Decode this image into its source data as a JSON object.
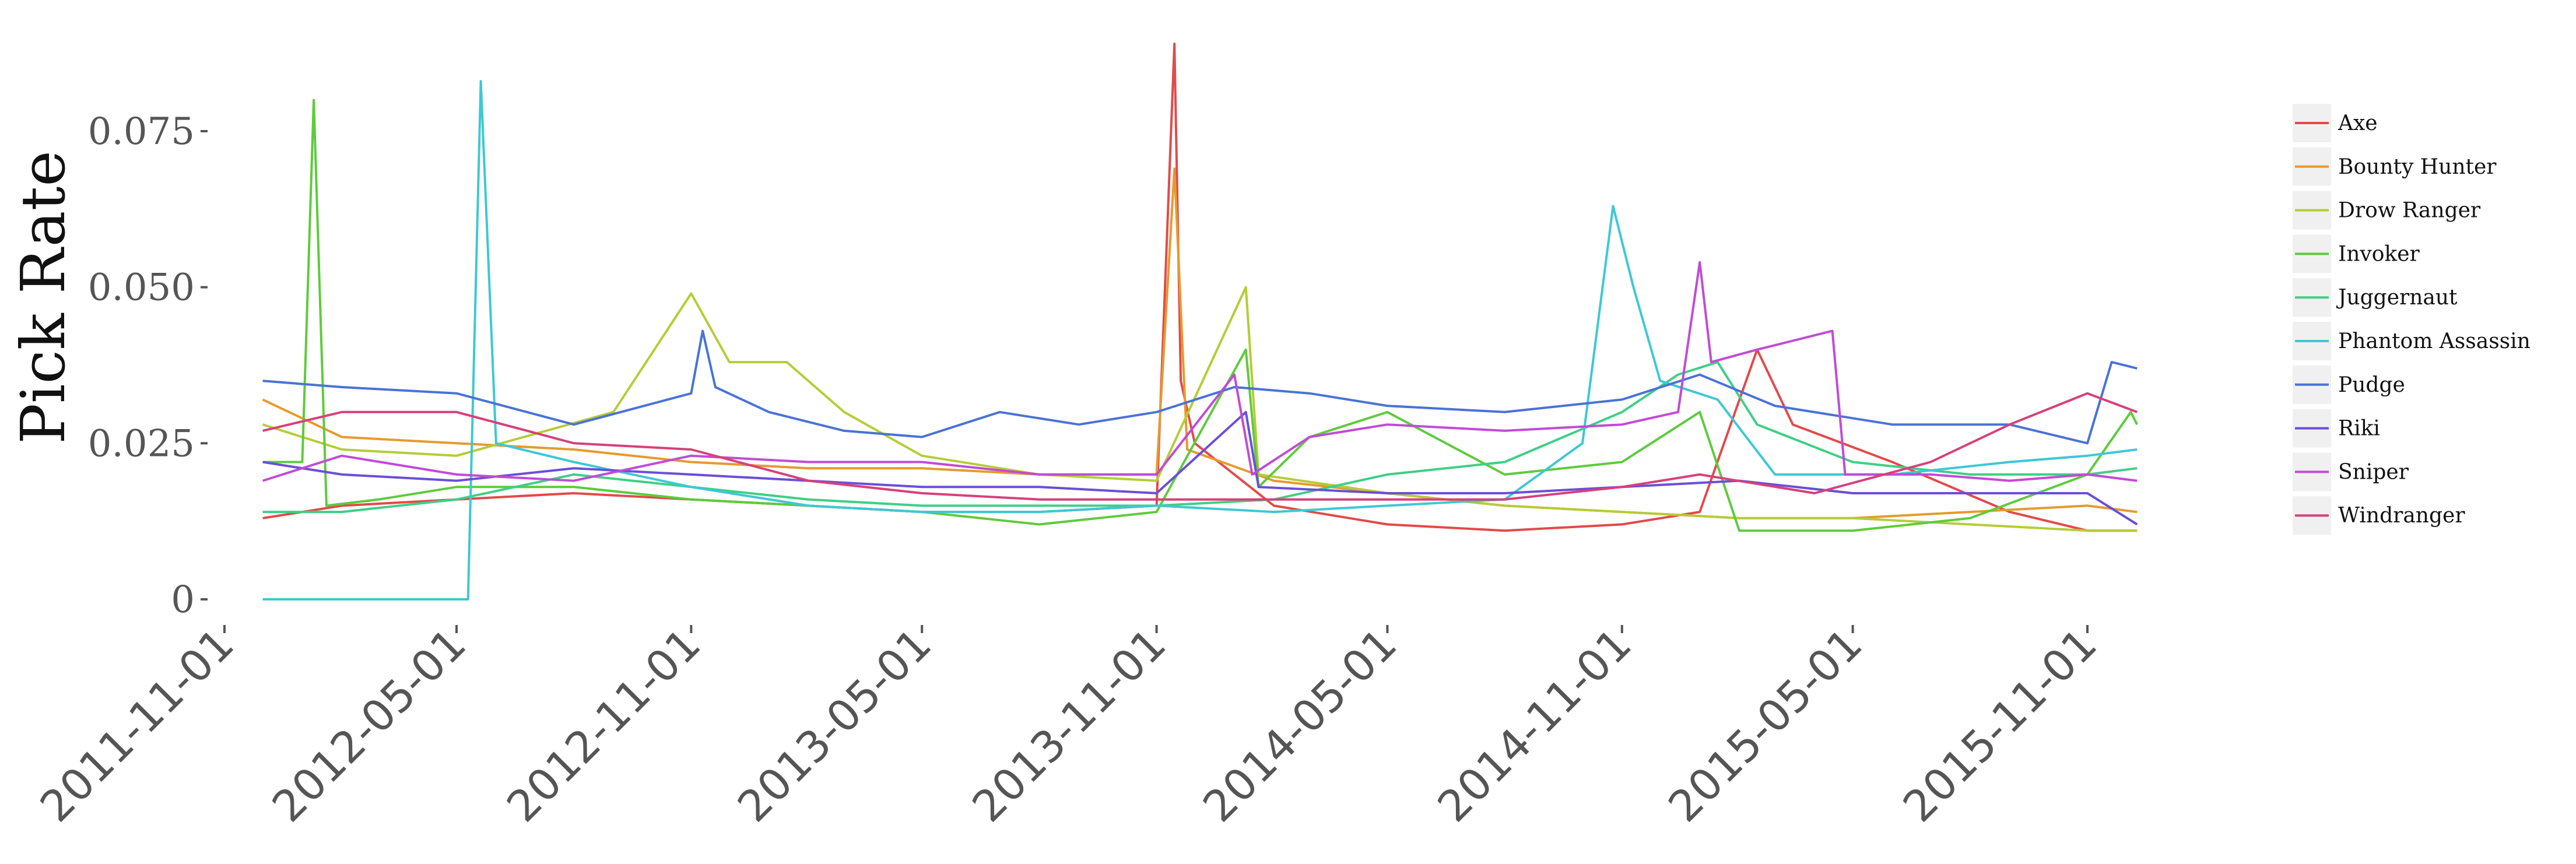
{
  "chart_data": {
    "type": "line",
    "title": "",
    "xlabel": "",
    "ylabel": "Pick Rate",
    "x_axis_type": "date",
    "x_range": [
      "2011-11-01",
      "2015-12-15"
    ],
    "x_ticks": [
      "2011-11-01",
      "2012-05-01",
      "2012-11-01",
      "2013-05-01",
      "2013-11-01",
      "2014-05-01",
      "2014-11-01",
      "2015-05-01",
      "2015-11-01"
    ],
    "y_ticks": [
      0,
      0.025,
      0.05,
      0.075
    ],
    "y_tick_labels": [
      "0",
      "0.025",
      "0.050",
      "0.075"
    ],
    "ylim": [
      -0.004,
      0.09
    ],
    "grid": false,
    "legend_position": "right",
    "series": [
      {
        "name": "Axe",
        "color": "#e24a4a",
        "points": [
          [
            "2011-12-01",
            0.013
          ],
          [
            "2012-02-01",
            0.015
          ],
          [
            "2012-05-01",
            0.016
          ],
          [
            "2012-08-01",
            0.017
          ],
          [
            "2012-11-01",
            0.016
          ],
          [
            "2013-02-01",
            0.015
          ],
          [
            "2013-05-01",
            0.014
          ],
          [
            "2013-08-01",
            0.014
          ],
          [
            "2013-11-01",
            0.015
          ],
          [
            "2013-11-15",
            0.089
          ],
          [
            "2013-11-20",
            0.035
          ],
          [
            "2013-12-01",
            0.025
          ],
          [
            "2014-02-01",
            0.015
          ],
          [
            "2014-05-01",
            0.012
          ],
          [
            "2014-08-01",
            0.011
          ],
          [
            "2014-11-01",
            0.012
          ],
          [
            "2015-01-01",
            0.014
          ],
          [
            "2015-02-15",
            0.04
          ],
          [
            "2015-03-15",
            0.028
          ],
          [
            "2015-06-01",
            0.022
          ],
          [
            "2015-09-01",
            0.014
          ],
          [
            "2015-11-01",
            0.011
          ],
          [
            "2015-12-10",
            0.011
          ]
        ]
      },
      {
        "name": "Bounty Hunter",
        "color": "#e69a2e",
        "points": [
          [
            "2011-12-01",
            0.032
          ],
          [
            "2012-02-01",
            0.026
          ],
          [
            "2012-05-01",
            0.025
          ],
          [
            "2012-08-01",
            0.024
          ],
          [
            "2012-11-01",
            0.022
          ],
          [
            "2013-02-01",
            0.021
          ],
          [
            "2013-05-01",
            0.021
          ],
          [
            "2013-08-01",
            0.02
          ],
          [
            "2013-11-01",
            0.02
          ],
          [
            "2013-11-15",
            0.069
          ],
          [
            "2013-11-25",
            0.024
          ],
          [
            "2014-02-01",
            0.019
          ],
          [
            "2014-05-01",
            0.017
          ],
          [
            "2014-08-01",
            0.015
          ],
          [
            "2014-11-01",
            0.014
          ],
          [
            "2015-02-01",
            0.013
          ],
          [
            "2015-05-01",
            0.013
          ],
          [
            "2015-08-01",
            0.014
          ],
          [
            "2015-11-01",
            0.015
          ],
          [
            "2015-12-10",
            0.014
          ]
        ]
      },
      {
        "name": "Drow Ranger",
        "color": "#b6cc36",
        "points": [
          [
            "2011-12-01",
            0.028
          ],
          [
            "2012-02-01",
            0.024
          ],
          [
            "2012-05-01",
            0.023
          ],
          [
            "2012-09-01",
            0.03
          ],
          [
            "2012-11-01",
            0.049
          ],
          [
            "2012-12-01",
            0.038
          ],
          [
            "2013-01-15",
            0.038
          ],
          [
            "2013-03-01",
            0.03
          ],
          [
            "2013-05-01",
            0.023
          ],
          [
            "2013-08-01",
            0.02
          ],
          [
            "2013-11-01",
            0.019
          ],
          [
            "2014-01-10",
            0.05
          ],
          [
            "2014-01-20",
            0.02
          ],
          [
            "2014-05-01",
            0.017
          ],
          [
            "2014-08-01",
            0.015
          ],
          [
            "2014-11-01",
            0.014
          ],
          [
            "2015-02-01",
            0.013
          ],
          [
            "2015-05-01",
            0.013
          ],
          [
            "2015-08-01",
            0.012
          ],
          [
            "2015-11-01",
            0.011
          ],
          [
            "2015-12-10",
            0.011
          ]
        ]
      },
      {
        "name": "Invoker",
        "color": "#5ecb3c",
        "points": [
          [
            "2011-12-01",
            0.022
          ],
          [
            "2012-01-01",
            0.022
          ],
          [
            "2012-01-10",
            0.08
          ],
          [
            "2012-01-20",
            0.015
          ],
          [
            "2012-03-01",
            0.016
          ],
          [
            "2012-05-01",
            0.018
          ],
          [
            "2012-08-01",
            0.018
          ],
          [
            "2012-11-01",
            0.016
          ],
          [
            "2013-02-01",
            0.015
          ],
          [
            "2013-05-01",
            0.014
          ],
          [
            "2013-08-01",
            0.012
          ],
          [
            "2013-11-01",
            0.014
          ],
          [
            "2014-01-10",
            0.04
          ],
          [
            "2014-01-20",
            0.018
          ],
          [
            "2014-03-01",
            0.026
          ],
          [
            "2014-05-01",
            0.03
          ],
          [
            "2014-08-01",
            0.02
          ],
          [
            "2014-11-01",
            0.022
          ],
          [
            "2015-01-01",
            0.03
          ],
          [
            "2015-02-01",
            0.011
          ],
          [
            "2015-05-01",
            0.011
          ],
          [
            "2015-08-01",
            0.013
          ],
          [
            "2015-11-01",
            0.02
          ],
          [
            "2015-12-05",
            0.03
          ],
          [
            "2015-12-10",
            0.028
          ]
        ]
      },
      {
        "name": "Juggernaut",
        "color": "#3fcf86",
        "points": [
          [
            "2011-12-01",
            0.014
          ],
          [
            "2012-02-01",
            0.014
          ],
          [
            "2012-05-01",
            0.016
          ],
          [
            "2012-08-01",
            0.02
          ],
          [
            "2012-11-01",
            0.018
          ],
          [
            "2013-02-01",
            0.016
          ],
          [
            "2013-05-01",
            0.015
          ],
          [
            "2013-08-01",
            0.015
          ],
          [
            "2013-11-01",
            0.015
          ],
          [
            "2014-02-01",
            0.016
          ],
          [
            "2014-05-01",
            0.02
          ],
          [
            "2014-08-01",
            0.022
          ],
          [
            "2014-11-01",
            0.03
          ],
          [
            "2014-12-15",
            0.036
          ],
          [
            "2015-01-15",
            0.038
          ],
          [
            "2015-02-15",
            0.028
          ],
          [
            "2015-05-01",
            0.022
          ],
          [
            "2015-08-01",
            0.02
          ],
          [
            "2015-11-01",
            0.02
          ],
          [
            "2015-12-10",
            0.021
          ]
        ]
      },
      {
        "name": "Phantom Assassin",
        "color": "#3ec8d4",
        "points": [
          [
            "2011-12-01",
            0.0
          ],
          [
            "2012-05-01",
            0.0
          ],
          [
            "2012-05-10",
            0.0
          ],
          [
            "2012-05-20",
            0.083
          ],
          [
            "2012-06-01",
            0.025
          ],
          [
            "2012-08-01",
            0.022
          ],
          [
            "2012-11-01",
            0.018
          ],
          [
            "2013-02-01",
            0.015
          ],
          [
            "2013-05-01",
            0.014
          ],
          [
            "2013-08-01",
            0.014
          ],
          [
            "2013-11-01",
            0.015
          ],
          [
            "2014-02-01",
            0.014
          ],
          [
            "2014-05-01",
            0.015
          ],
          [
            "2014-08-01",
            0.016
          ],
          [
            "2014-10-01",
            0.025
          ],
          [
            "2014-10-25",
            0.063
          ],
          [
            "2014-11-10",
            0.05
          ],
          [
            "2014-12-01",
            0.035
          ],
          [
            "2015-01-15",
            0.032
          ],
          [
            "2015-03-01",
            0.02
          ],
          [
            "2015-06-01",
            0.02
          ],
          [
            "2015-09-01",
            0.022
          ],
          [
            "2015-11-01",
            0.023
          ],
          [
            "2015-12-10",
            0.024
          ]
        ]
      },
      {
        "name": "Pudge",
        "color": "#4a72d6",
        "points": [
          [
            "2011-12-01",
            0.035
          ],
          [
            "2012-02-01",
            0.034
          ],
          [
            "2012-05-01",
            0.033
          ],
          [
            "2012-08-01",
            0.028
          ],
          [
            "2012-11-01",
            0.033
          ],
          [
            "2012-11-10",
            0.043
          ],
          [
            "2012-11-20",
            0.034
          ],
          [
            "2013-01-01",
            0.03
          ],
          [
            "2013-03-01",
            0.027
          ],
          [
            "2013-05-01",
            0.026
          ],
          [
            "2013-07-01",
            0.03
          ],
          [
            "2013-09-01",
            0.028
          ],
          [
            "2013-11-01",
            0.03
          ],
          [
            "2014-01-01",
            0.034
          ],
          [
            "2014-03-01",
            0.033
          ],
          [
            "2014-05-01",
            0.031
          ],
          [
            "2014-08-01",
            0.03
          ],
          [
            "2014-11-01",
            0.032
          ],
          [
            "2015-01-01",
            0.036
          ],
          [
            "2015-03-01",
            0.031
          ],
          [
            "2015-06-01",
            0.028
          ],
          [
            "2015-09-01",
            0.028
          ],
          [
            "2015-11-01",
            0.025
          ],
          [
            "2015-11-20",
            0.038
          ],
          [
            "2015-12-10",
            0.037
          ]
        ]
      },
      {
        "name": "Riki",
        "color": "#6a4fd6",
        "points": [
          [
            "2011-12-01",
            0.022
          ],
          [
            "2012-02-01",
            0.02
          ],
          [
            "2012-05-01",
            0.019
          ],
          [
            "2012-08-01",
            0.021
          ],
          [
            "2012-11-01",
            0.02
          ],
          [
            "2013-02-01",
            0.019
          ],
          [
            "2013-05-01",
            0.018
          ],
          [
            "2013-08-01",
            0.018
          ],
          [
            "2013-11-01",
            0.017
          ],
          [
            "2014-01-10",
            0.03
          ],
          [
            "2014-01-20",
            0.018
          ],
          [
            "2014-05-01",
            0.017
          ],
          [
            "2014-08-01",
            0.017
          ],
          [
            "2014-11-01",
            0.018
          ],
          [
            "2015-02-01",
            0.019
          ],
          [
            "2015-05-01",
            0.017
          ],
          [
            "2015-08-01",
            0.017
          ],
          [
            "2015-11-01",
            0.017
          ],
          [
            "2015-12-10",
            0.012
          ]
        ]
      },
      {
        "name": "Sniper",
        "color": "#c14bd6",
        "points": [
          [
            "2011-12-01",
            0.019
          ],
          [
            "2012-02-01",
            0.023
          ],
          [
            "2012-05-01",
            0.02
          ],
          [
            "2012-08-01",
            0.019
          ],
          [
            "2012-11-01",
            0.023
          ],
          [
            "2013-02-01",
            0.022
          ],
          [
            "2013-05-01",
            0.022
          ],
          [
            "2013-08-01",
            0.02
          ],
          [
            "2013-11-01",
            0.02
          ],
          [
            "2014-01-01",
            0.036
          ],
          [
            "2014-01-15",
            0.02
          ],
          [
            "2014-03-01",
            0.026
          ],
          [
            "2014-05-01",
            0.028
          ],
          [
            "2014-08-01",
            0.027
          ],
          [
            "2014-11-01",
            0.028
          ],
          [
            "2014-12-15",
            0.03
          ],
          [
            "2015-01-01",
            0.054
          ],
          [
            "2015-01-10",
            0.038
          ],
          [
            "2015-02-15",
            0.04
          ],
          [
            "2015-04-15",
            0.043
          ],
          [
            "2015-04-25",
            0.02
          ],
          [
            "2015-07-01",
            0.02
          ],
          [
            "2015-09-01",
            0.019
          ],
          [
            "2015-11-01",
            0.02
          ],
          [
            "2015-12-10",
            0.019
          ]
        ]
      },
      {
        "name": "Windranger",
        "color": "#d6417a",
        "points": [
          [
            "2011-12-01",
            0.027
          ],
          [
            "2012-02-01",
            0.03
          ],
          [
            "2012-05-01",
            0.03
          ],
          [
            "2012-08-01",
            0.025
          ],
          [
            "2012-11-01",
            0.024
          ],
          [
            "2013-02-01",
            0.019
          ],
          [
            "2013-05-01",
            0.017
          ],
          [
            "2013-08-01",
            0.016
          ],
          [
            "2013-11-01",
            0.016
          ],
          [
            "2014-02-01",
            0.016
          ],
          [
            "2014-05-01",
            0.016
          ],
          [
            "2014-08-01",
            0.016
          ],
          [
            "2014-11-01",
            0.018
          ],
          [
            "2015-01-01",
            0.02
          ],
          [
            "2015-04-01",
            0.017
          ],
          [
            "2015-07-01",
            0.022
          ],
          [
            "2015-09-01",
            0.028
          ],
          [
            "2015-11-01",
            0.033
          ],
          [
            "2015-12-10",
            0.03
          ]
        ]
      }
    ]
  }
}
